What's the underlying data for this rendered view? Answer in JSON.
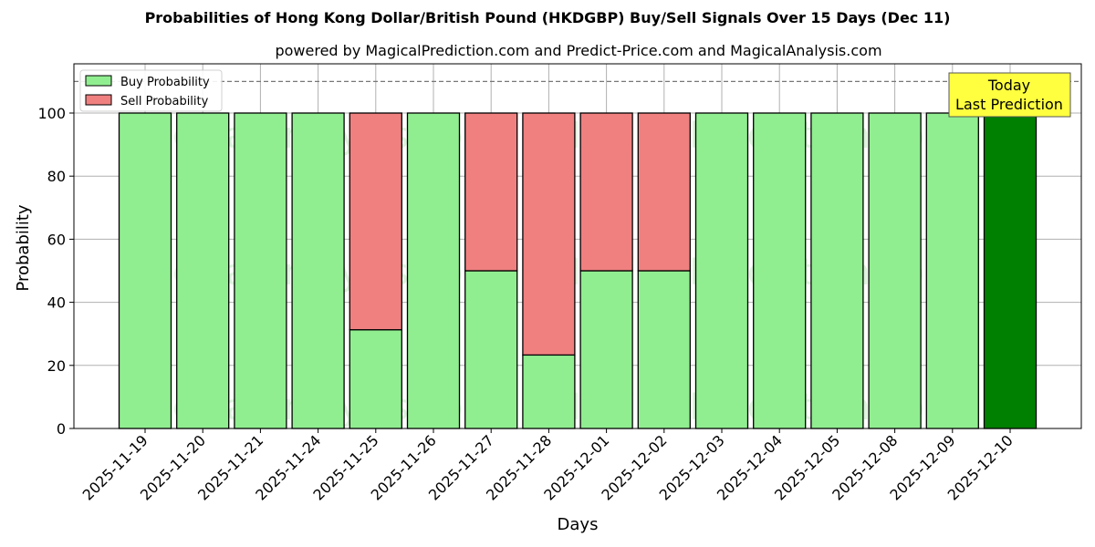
{
  "header": {
    "title": "Probabilities of Hong Kong Dollar/British Pound (HKDGBP) Buy/Sell Signals Over 15 Days (Dec 11)",
    "subtitle": "powered by MagicalPrediction.com and Predict-Price.com and MagicalAnalysis.com"
  },
  "annotation": {
    "line1": "Today",
    "line2": "Last Prediction"
  },
  "watermarks": [
    "MagicalAnalysis.com",
    "MagicalPrediction.com"
  ],
  "colors": {
    "buy": "#90ee90",
    "sell": "#f08080",
    "today": "#008000",
    "annotation_bg": "#ffff40"
  },
  "chart_data": {
    "type": "bar",
    "stacked": true,
    "title": "Probabilities of Hong Kong Dollar/British Pound (HKDGBP) Buy/Sell Signals Over 15 Days (Dec 11)",
    "subtitle": "powered by MagicalPrediction.com and Predict-Price.com and MagicalAnalysis.com",
    "xlabel": "Days",
    "ylabel": "Probability",
    "ylim": [
      0,
      115
    ],
    "yticks": [
      0,
      20,
      40,
      60,
      80,
      100
    ],
    "grid": true,
    "legend_position": "upper left",
    "reference_line": 110,
    "categories": [
      "2025-11-19",
      "2025-11-20",
      "2025-11-21",
      "2025-11-24",
      "2025-11-25",
      "2025-11-26",
      "2025-11-27",
      "2025-11-28",
      "2025-12-01",
      "2025-12-02",
      "2025-12-03",
      "2025-12-04",
      "2025-12-05",
      "2025-12-08",
      "2025-12-09",
      "2025-12-10"
    ],
    "series": [
      {
        "name": "Buy Probability",
        "values": [
          100,
          100,
          100,
          100,
          31.3,
          100,
          50,
          23.3,
          50,
          50,
          100,
          100,
          100,
          100,
          100,
          100
        ]
      },
      {
        "name": "Sell Probability",
        "values": [
          0,
          0,
          0,
          0,
          68.7,
          0,
          50,
          76.7,
          50,
          50,
          0,
          0,
          0,
          0,
          0,
          0
        ]
      }
    ]
  }
}
